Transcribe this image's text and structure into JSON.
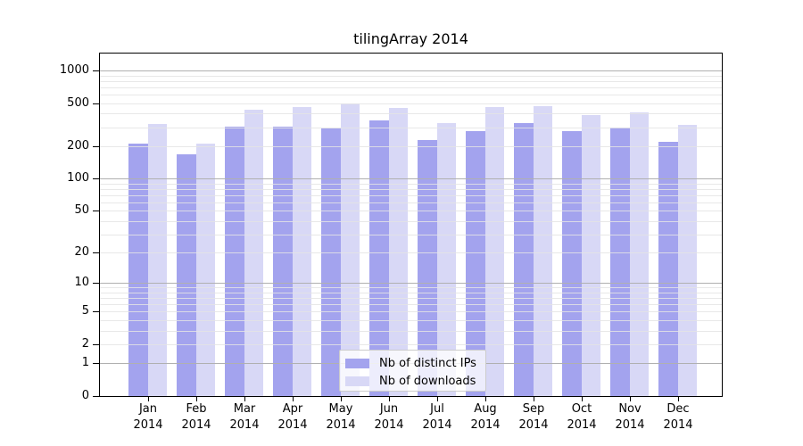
{
  "chart_data": {
    "type": "bar",
    "title": "tilingArray 2014",
    "categories": [
      "Jan 2014",
      "Feb 2014",
      "Mar 2014",
      "Apr 2014",
      "May 2014",
      "Jun 2014",
      "Jul 2014",
      "Aug 2014",
      "Sep 2014",
      "Oct 2014",
      "Nov 2014",
      "Dec 2014"
    ],
    "series": [
      {
        "name": "Nb of distinct IPs",
        "color": "#a3a3ee",
        "values": [
          211,
          168,
          305,
          304,
          290,
          349,
          227,
          275,
          329,
          276,
          296,
          220
        ]
      },
      {
        "name": "Nb of downloads",
        "color": "#d8d8f6",
        "values": [
          318,
          211,
          437,
          461,
          500,
          450,
          328,
          461,
          467,
          390,
          413,
          312
        ]
      }
    ],
    "y_axis": {
      "scale": "log1p",
      "ticks": [
        0,
        1,
        2,
        5,
        10,
        20,
        50,
        100,
        200,
        500,
        1000
      ],
      "max": 1460
    },
    "grid": {
      "major_values": [
        1,
        10,
        100,
        1000
      ],
      "minor_multiples": [
        2,
        3,
        4,
        5,
        6,
        7,
        8,
        9
      ],
      "major_color": "#b0b0b0",
      "minor_color": "#e4e4e4",
      "position": "above-bars"
    },
    "legend_position": "inside-bottom-center"
  }
}
